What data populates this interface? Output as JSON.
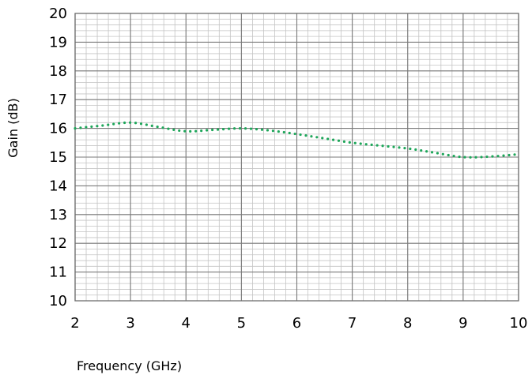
{
  "chart_data": {
    "type": "line",
    "title": "",
    "xlabel": "Frequency (GHz)",
    "ylabel": "Gain (dB)",
    "xlim": [
      2,
      10
    ],
    "ylim": [
      10,
      20
    ],
    "x_ticks": [
      2,
      3,
      4,
      5,
      6,
      7,
      8,
      9,
      10
    ],
    "y_ticks": [
      10,
      11,
      12,
      13,
      14,
      15,
      16,
      17,
      18,
      19,
      20
    ],
    "grid": true,
    "series": [
      {
        "color": "#1ea65a",
        "style": "dotted",
        "x": [
          2.0,
          2.5,
          3.0,
          3.5,
          4.0,
          4.5,
          5.0,
          5.5,
          6.0,
          6.5,
          7.0,
          7.5,
          8.0,
          8.5,
          9.0,
          9.5,
          10.0
        ],
        "y": [
          16.0,
          16.1,
          16.2,
          16.05,
          15.9,
          15.95,
          16.0,
          15.93,
          15.8,
          15.65,
          15.5,
          15.4,
          15.3,
          15.15,
          15.0,
          15.02,
          15.1
        ]
      }
    ]
  }
}
